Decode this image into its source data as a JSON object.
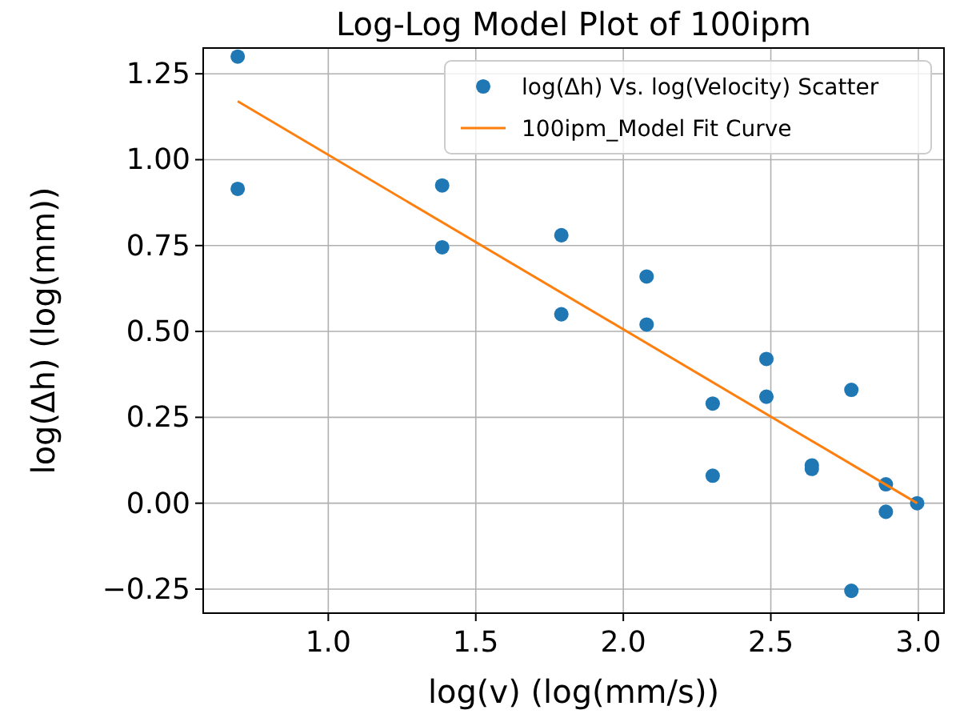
{
  "chart_data": {
    "type": "scatter",
    "title": "Log-Log Model Plot of 100ipm",
    "xlabel": "log(v) (log(mm/s))",
    "ylabel": "log(Δh) (log(mm))",
    "xlim": [
      0.576,
      3.087
    ],
    "ylim": [
      -0.32,
      1.325
    ],
    "xticks": [
      {
        "value": 1,
        "label": "1.0"
      },
      {
        "value": 1.5,
        "label": "1.5"
      },
      {
        "value": 2,
        "label": "2.0"
      },
      {
        "value": 2.5,
        "label": "2.5"
      },
      {
        "value": 3,
        "label": "3.0"
      }
    ],
    "yticks": [
      {
        "value": -0.25,
        "label": "−0.25"
      },
      {
        "value": 0,
        "label": "0.00"
      },
      {
        "value": 0.25,
        "label": "0.25"
      },
      {
        "value": 0.5,
        "label": "0.50"
      },
      {
        "value": 0.75,
        "label": "0.75"
      },
      {
        "value": 1,
        "label": "1.00"
      },
      {
        "value": 1.25,
        "label": "1.25"
      }
    ],
    "grid": true,
    "legend": "top right",
    "series": [
      {
        "name": "log(Δh) Vs. log(Velocity) Scatter",
        "marker": "circle",
        "color": "#1f77b4",
        "x": [
          0.693,
          0.693,
          1.386,
          1.386,
          1.79,
          1.79,
          2.079,
          2.079,
          2.303,
          2.303,
          2.485,
          2.485,
          2.639,
          2.639,
          2.773,
          2.773,
          2.89,
          2.89,
          2.996
        ],
        "values": [
          1.3,
          0.915,
          0.925,
          0.745,
          0.78,
          0.55,
          0.66,
          0.52,
          0.29,
          0.08,
          0.42,
          0.31,
          0.11,
          0.1,
          0.33,
          -0.255,
          0.055,
          -0.025,
          0.0
        ]
      },
      {
        "name": "100ipm_Model Fit Curve",
        "type": "line",
        "marker": "none",
        "line_style": "solid",
        "color": "#ff7f0e",
        "x": [
          0.693,
          2.996
        ],
        "values": [
          1.17,
          0.0
        ]
      }
    ]
  }
}
